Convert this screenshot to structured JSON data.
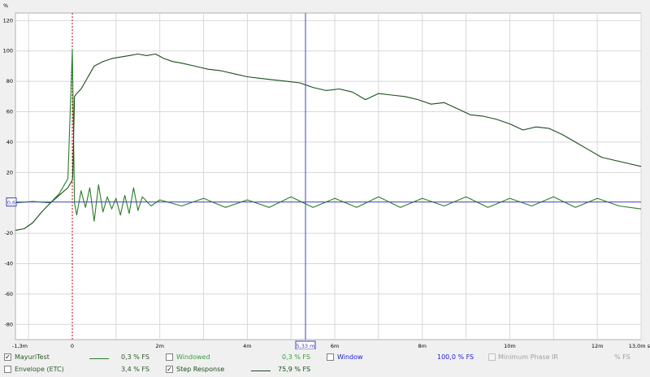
{
  "y_axis": {
    "unit_label": "%",
    "ticks": [
      "120",
      "100",
      "80",
      "60",
      "40",
      "20",
      "-20",
      "-40",
      "-60",
      "-80"
    ]
  },
  "x_axis": {
    "ticks": [
      "-1,3m",
      "0",
      "2m",
      "4m",
      "6m",
      "8m",
      "10m",
      "12m",
      "13,0m s"
    ]
  },
  "cursor": {
    "x_readout": "5,33 m",
    "y_readout": "0,6"
  },
  "colors": {
    "step_response": "#1b4d1b",
    "windowed": "#2a8a2a",
    "mayuri": "#2a7d2a",
    "cursor": "#4040c0",
    "zero_line": "#c00000",
    "grid": "#d8d8d8"
  },
  "legend": {
    "row1": [
      {
        "label": "MayuriTest",
        "checked": true,
        "value": "0,3 % FS",
        "color": "#2a7d2a",
        "label_color": "#2a5a2a"
      },
      {
        "label": "Windowed",
        "checked": false,
        "value": "0,3 % FS",
        "color": "#2a8a2a",
        "label_color": "#3aa03a"
      },
      {
        "label": "Window",
        "checked": false,
        "value": "100,0 % FS",
        "color": "#2020d0",
        "label_color": "#2020d0"
      },
      {
        "label": "Minimum Phase IR",
        "checked": false,
        "value": "% FS",
        "color": "#a0a0a0",
        "label_color": "#a0a0a0"
      }
    ],
    "row2": [
      {
        "label": "Envelope (ETC)",
        "checked": false,
        "value": "3,4 % FS",
        "color": "#2a7d2a",
        "label_color": "#2a5a2a"
      },
      {
        "label": "Step Response",
        "checked": true,
        "value": "75,9 % FS",
        "color": "#1b4d1b",
        "label_color": "#1b4d1b"
      }
    ]
  },
  "chart_data": {
    "type": "line",
    "ylabel": "%",
    "xlabel": "s",
    "xlim": [
      -1.3,
      13.0
    ],
    "ylim": [
      -90,
      125
    ],
    "cursor_x": 5.33,
    "cursor_y": 0.6,
    "series": [
      {
        "name": "Step Response",
        "x": [
          -1.3,
          -1.1,
          -0.9,
          -0.7,
          -0.5,
          -0.3,
          -0.1,
          0.0,
          0.01,
          0.05,
          0.1,
          0.2,
          0.3,
          0.4,
          0.5,
          0.7,
          0.9,
          1.1,
          1.3,
          1.5,
          1.7,
          1.9,
          2.1,
          2.3,
          2.5,
          2.8,
          3.1,
          3.4,
          3.7,
          4.0,
          4.3,
          4.6,
          4.9,
          5.2,
          5.5,
          5.8,
          6.1,
          6.4,
          6.7,
          7.0,
          7.3,
          7.6,
          7.9,
          8.2,
          8.5,
          8.8,
          9.1,
          9.4,
          9.7,
          10.0,
          10.3,
          10.6,
          10.9,
          11.2,
          11.5,
          11.8,
          12.1,
          12.4,
          12.7,
          13.0
        ],
        "y": [
          -18,
          -17,
          -13,
          -6,
          0,
          5,
          10,
          15,
          18,
          70,
          72,
          75,
          80,
          85,
          90,
          93,
          95,
          96,
          97,
          98,
          97,
          98,
          95,
          93,
          92,
          90,
          88,
          87,
          85,
          83,
          82,
          81,
          80,
          79,
          76,
          74,
          75,
          73,
          68,
          72,
          71,
          70,
          68,
          65,
          66,
          62,
          58,
          57,
          55,
          52,
          48,
          50,
          49,
          45,
          40,
          35,
          30,
          28,
          26,
          24
        ]
      },
      {
        "name": "MayuriTest",
        "x": [
          -1.3,
          -0.9,
          -0.5,
          -0.3,
          -0.1,
          0.0,
          0.05,
          0.1,
          0.2,
          0.3,
          0.4,
          0.5,
          0.6,
          0.7,
          0.8,
          0.9,
          1.0,
          1.1,
          1.2,
          1.3,
          1.4,
          1.5,
          1.6,
          1.8,
          2.0,
          2.5,
          3.0,
          3.5,
          4.0,
          4.5,
          5.0,
          5.5,
          6.0,
          6.5,
          7.0,
          7.5,
          8.0,
          8.5,
          9.0,
          9.5,
          10.0,
          10.5,
          11.0,
          11.5,
          12.0,
          12.5,
          13.0
        ],
        "y": [
          0,
          1,
          0,
          6,
          16,
          101,
          0,
          -8,
          8,
          -3,
          10,
          -12,
          12,
          -6,
          4,
          -4,
          3,
          -8,
          5,
          -7,
          10,
          -5,
          4,
          -2,
          2,
          -2,
          3,
          -3,
          2,
          -3,
          4,
          -3,
          3,
          -3,
          4,
          -3,
          3,
          -2,
          4,
          -3,
          3,
          -2,
          4,
          -3,
          3,
          -2,
          -4
        ]
      }
    ]
  }
}
